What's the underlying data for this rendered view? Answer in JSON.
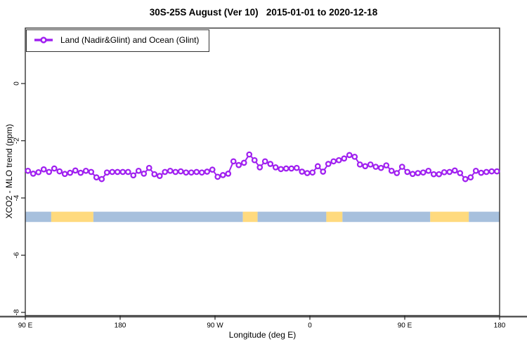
{
  "chart_data": {
    "type": "line",
    "title": "30S-25S August (Ver 10)   2015-01-01 to 2020-12-18",
    "xlabel": "Longitude (deg E)",
    "ylabel": "XCO2 - MLO trend (ppm)",
    "xlim": [
      90,
      540
    ],
    "ylim": [
      -8.1,
      1.9
    ],
    "grid": false,
    "legend_position": "top-left-inside",
    "x_ticks": [
      {
        "lon": 90,
        "label": "90 E"
      },
      {
        "lon": 180,
        "label": "180"
      },
      {
        "lon": 270,
        "label": "90 W"
      },
      {
        "lon": 360,
        "label": "0"
      },
      {
        "lon": 450,
        "label": "90 E"
      },
      {
        "lon": 540,
        "label": "180"
      }
    ],
    "y_ticks": [
      {
        "value": 0,
        "label": "0"
      },
      {
        "value": -2,
        "label": "-2"
      },
      {
        "value": -4,
        "label": "-4"
      },
      {
        "value": -6,
        "label": "-6"
      },
      {
        "value": -8,
        "label": "-8"
      }
    ],
    "series": [
      {
        "name": "Land (Nadir&Glint) and Ocean (Glint)",
        "color": "#A020F0",
        "marker": "open-circle",
        "x": [
          92.5,
          97.5,
          102.5,
          107.5,
          112.5,
          117.5,
          122.5,
          127.5,
          132.5,
          137.5,
          142.5,
          147.5,
          152.5,
          157.5,
          162.5,
          167.5,
          172.5,
          177.5,
          182.5,
          187.5,
          192.5,
          197.5,
          202.5,
          207.5,
          212.5,
          217.5,
          222.5,
          227.5,
          232.5,
          237.5,
          242.5,
          247.5,
          252.5,
          257.5,
          262.5,
          267.5,
          272.5,
          277.5,
          282.5,
          287.5,
          292.5,
          297.5,
          302.5,
          307.5,
          312.5,
          317.5,
          322.5,
          327.5,
          332.5,
          337.5,
          342.5,
          347.5,
          352.5,
          357.5,
          362.5,
          367.5,
          372.5,
          377.5,
          382.5,
          387.5,
          392.5,
          397.5,
          402.5,
          407.5,
          412.5,
          417.5,
          422.5,
          427.5,
          432.5,
          437.5,
          442.5,
          447.5,
          452.5,
          457.5,
          462.5,
          467.5,
          472.5,
          477.5,
          482.5,
          487.5,
          492.5,
          497.5,
          502.5,
          507.5,
          512.5,
          517.5,
          522.5,
          527.5,
          532.5,
          537.5
        ],
        "y": [
          -3.05,
          -3.15,
          -3.1,
          -3.0,
          -3.09,
          -2.97,
          -3.07,
          -3.16,
          -3.12,
          -3.04,
          -3.12,
          -3.05,
          -3.09,
          -3.28,
          -3.34,
          -3.11,
          -3.09,
          -3.09,
          -3.09,
          -3.09,
          -3.21,
          -3.05,
          -3.15,
          -2.95,
          -3.17,
          -3.23,
          -3.09,
          -3.05,
          -3.09,
          -3.07,
          -3.11,
          -3.11,
          -3.09,
          -3.11,
          -3.08,
          -3.01,
          -3.26,
          -3.2,
          -3.15,
          -2.72,
          -2.85,
          -2.77,
          -2.48,
          -2.68,
          -2.93,
          -2.72,
          -2.81,
          -2.93,
          -2.99,
          -2.97,
          -2.97,
          -2.95,
          -3.08,
          -3.13,
          -3.11,
          -2.89,
          -3.08,
          -2.81,
          -2.72,
          -2.68,
          -2.62,
          -2.5,
          -2.56,
          -2.83,
          -2.89,
          -2.83,
          -2.91,
          -2.95,
          -2.86,
          -3.05,
          -3.13,
          -2.91,
          -3.09,
          -3.16,
          -3.13,
          -3.11,
          -3.05,
          -3.17,
          -3.17,
          -3.1,
          -3.09,
          -3.04,
          -3.13,
          -3.34,
          -3.28,
          -3.05,
          -3.12,
          -3.09,
          -3.07,
          -3.07
        ]
      }
    ],
    "surface_band": {
      "description": "land/ocean indicator strip",
      "value_top": -4.48,
      "value_bottom": -4.84,
      "colors": {
        "ocean": "#A7C0DD",
        "land": "#FFDA7E"
      },
      "segments": [
        {
          "start": 90.0,
          "end": 114.6,
          "type": "ocean"
        },
        {
          "start": 114.6,
          "end": 154.6,
          "type": "land"
        },
        {
          "start": 154.6,
          "end": 296.4,
          "type": "ocean"
        },
        {
          "start": 296.4,
          "end": 310.4,
          "type": "land"
        },
        {
          "start": 310.4,
          "end": 375.6,
          "type": "ocean"
        },
        {
          "start": 375.6,
          "end": 390.9,
          "type": "land"
        },
        {
          "start": 390.9,
          "end": 474.2,
          "type": "ocean"
        },
        {
          "start": 474.2,
          "end": 510.8,
          "type": "land"
        },
        {
          "start": 510.8,
          "end": 540.0,
          "type": "ocean"
        }
      ]
    },
    "axis_color": "#333333",
    "bottom_rule_color": "#575757"
  }
}
